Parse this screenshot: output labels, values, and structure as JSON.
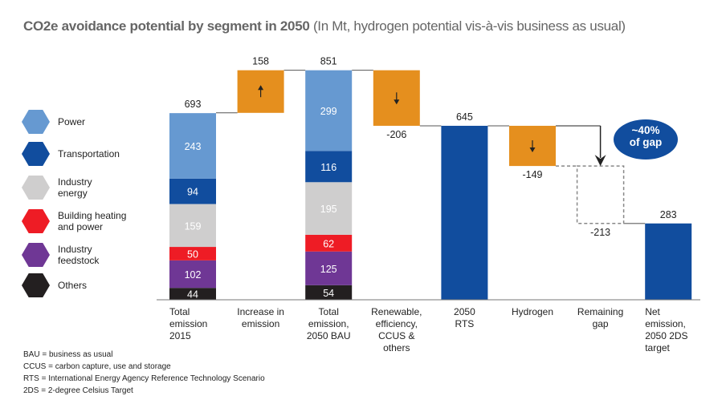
{
  "title": {
    "bold": "CO2e avoidance potential by segment in 2050",
    "normal": " (In Mt, hydrogen potential vis-à-vis business as usual)"
  },
  "legend": [
    {
      "label": "Power",
      "color": "#6699d1"
    },
    {
      "label": "Transportation",
      "color": "#114d9e"
    },
    {
      "label": "Industry\nenergy",
      "color": "#cfcece"
    },
    {
      "label": "Building heating\nand power",
      "color": "#ee1c25"
    },
    {
      "label": "Industry\nfeedstock",
      "color": "#6f3795"
    },
    {
      "label": "Others",
      "color": "#231f20"
    }
  ],
  "notes": [
    "BAU = business as usual",
    "CCUS = carbon capture, use and storage",
    "RTS = International Energy Agency Reference Technology Scenario",
    "2DS = 2-degree Celsius Target"
  ],
  "callout": "~40%\nof gap",
  "chart_data": {
    "type": "bar",
    "subtype": "waterfall",
    "title": "CO2e avoidance potential by segment in 2050",
    "ylabel": "Mt CO2e",
    "ylim": [
      0,
      880
    ],
    "grid": false,
    "legend_position": "left",
    "colors": {
      "increase": "#e58f1e",
      "decrease": "#e58f1e",
      "total": "#114d9e",
      "gap": "#999999"
    },
    "categories": [
      "Total emission 2015",
      "Increase in emission",
      "Total emission, 2050 BAU",
      "Renewable, efficiency, CCUS & others",
      "2050 RTS",
      "Hydrogen",
      "Remaining gap",
      "Net emission, 2050 2DS target"
    ],
    "category_labels": [
      [
        "Total",
        "emission",
        "2015"
      ],
      [
        "Increase in",
        "emission"
      ],
      [
        "Total",
        "emission,",
        "2050 BAU"
      ],
      [
        "Renewable,",
        "efficiency,",
        "CCUS &",
        "others"
      ],
      [
        "2050",
        "RTS"
      ],
      [
        "Hydrogen"
      ],
      [
        "Remaining",
        "gap"
      ],
      [
        "Net",
        "emission,",
        "2050 2DS",
        "target"
      ]
    ],
    "steps": [
      {
        "kind": "stacked",
        "value": 693,
        "label": "693",
        "segments": [
          44,
          102,
          50,
          159,
          94,
          243
        ]
      },
      {
        "kind": "increase",
        "value": 158,
        "label": "158",
        "arrow": "up"
      },
      {
        "kind": "stacked",
        "value": 851,
        "label": "851",
        "segments": [
          54,
          125,
          62,
          195,
          116,
          299
        ]
      },
      {
        "kind": "decrease",
        "value": -206,
        "label": "-206",
        "arrow": "down"
      },
      {
        "kind": "total",
        "value": 645,
        "label": "645"
      },
      {
        "kind": "decrease",
        "value": -149,
        "label": "-149",
        "arrow": "down"
      },
      {
        "kind": "gap",
        "value": -213,
        "label": "-213"
      },
      {
        "kind": "total",
        "value": 283,
        "label": "283"
      }
    ],
    "series": [
      {
        "name": "Others",
        "values": [
          44,
          null,
          54,
          null,
          null,
          null,
          null,
          null
        ]
      },
      {
        "name": "Industry feedstock",
        "values": [
          102,
          null,
          125,
          null,
          null,
          null,
          null,
          null
        ]
      },
      {
        "name": "Building heating and power",
        "values": [
          50,
          null,
          62,
          null,
          null,
          null,
          null,
          null
        ]
      },
      {
        "name": "Industry energy",
        "values": [
          159,
          null,
          195,
          null,
          null,
          null,
          null,
          null
        ]
      },
      {
        "name": "Transportation",
        "values": [
          94,
          null,
          116,
          null,
          null,
          null,
          null,
          null
        ]
      },
      {
        "name": "Power",
        "values": [
          243,
          null,
          299,
          null,
          null,
          null,
          null,
          null
        ]
      }
    ]
  }
}
